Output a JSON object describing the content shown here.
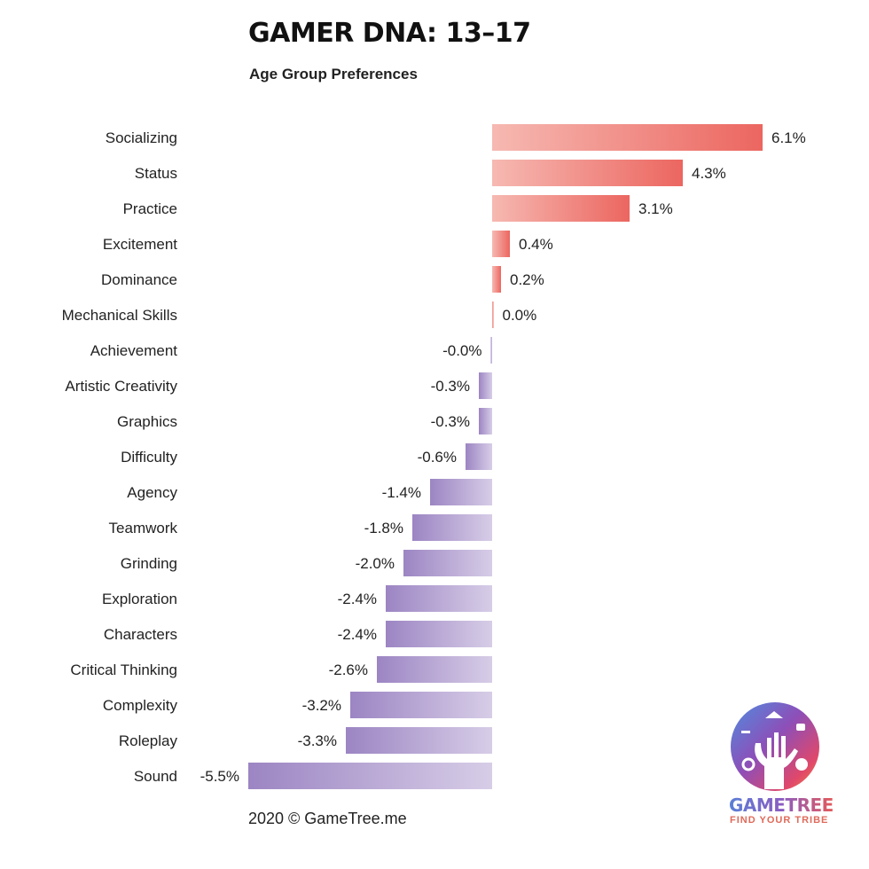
{
  "title": "GAMER DNA: 13–17",
  "subtitle": "Age Group Preferences",
  "footer": "2020 © GameTree.me",
  "brand": {
    "name": "GAMETREE",
    "tagline": "FIND YOUR TRIBE",
    "logo_icon": "gametree-tree-hand-icon"
  },
  "colors": {
    "positive_light": "#f6b9b2",
    "positive_dark": "#ec6660",
    "negative_light": "#d7cde7",
    "negative_dark": "#9c85c3"
  },
  "chart_data": {
    "type": "bar",
    "orientation": "horizontal",
    "title": "GAMER DNA: 13–17",
    "subtitle": "Age Group Preferences",
    "categories": [
      "Socializing",
      "Status",
      "Practice",
      "Excitement",
      "Dominance",
      "Mechanical Skills",
      "Achievement",
      "Artistic Creativity",
      "Graphics",
      "Difficulty",
      "Agency",
      "Teamwork",
      "Grinding",
      "Exploration",
      "Characters",
      "Critical Thinking",
      "Complexity",
      "Roleplay",
      "Sound"
    ],
    "values": [
      6.1,
      4.3,
      3.1,
      0.4,
      0.2,
      0.0,
      -0.03,
      -0.3,
      -0.3,
      -0.6,
      -1.4,
      -1.8,
      -2.0,
      -2.4,
      -2.4,
      -2.6,
      -3.2,
      -3.3,
      -5.5
    ],
    "labels": [
      "6.1%",
      "4.3%",
      "3.1%",
      "0.4%",
      "0.2%",
      "0.0%",
      "-0.0%",
      "-0.3%",
      "-0.3%",
      "-0.6%",
      "-1.4%",
      "-1.8%",
      "-2.0%",
      "-2.4%",
      "-2.4%",
      "-2.6%",
      "-3.2%",
      "-3.3%",
      "-5.5%"
    ],
    "xlim": [
      -5.5,
      6.1
    ],
    "grid": false,
    "legend": "none"
  }
}
